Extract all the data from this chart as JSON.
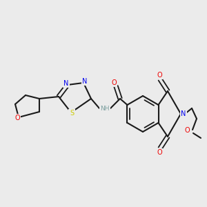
{
  "bg": "#ebebeb",
  "bc": "#1a1a1a",
  "Nc": "#0000ee",
  "Oc": "#ee0000",
  "Sc": "#cccc00",
  "Hc": "#7a9e9e",
  "lw": 1.5,
  "dlw": 1.3,
  "fs": 7.0,
  "figsize": [
    3.0,
    3.0
  ],
  "dpi": 100,
  "xlim": [
    0,
    300
  ],
  "ylim": [
    300,
    0
  ]
}
